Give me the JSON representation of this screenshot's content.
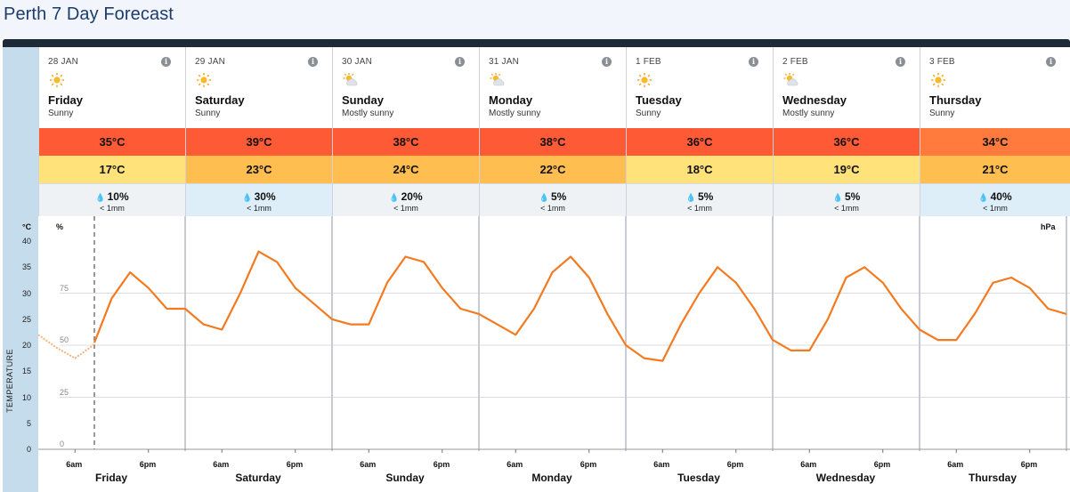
{
  "page_title": "Perth 7 Day Forecast",
  "days": [
    {
      "date": "28 JAN",
      "name": "Friday",
      "desc": "Sunny",
      "icon": "sun-icon",
      "max": "35°C",
      "min": "17°C",
      "max_color": "#ff5a36",
      "min_color": "#ffe27a",
      "rain_chance": "10%",
      "rain_amount": "< 1mm",
      "rain_bg": "#eff2f5"
    },
    {
      "date": "29 JAN",
      "name": "Saturday",
      "desc": "Sunny",
      "icon": "sun-icon",
      "max": "39°C",
      "min": "23°C",
      "max_color": "#ff5a36",
      "min_color": "#ffbe4f",
      "rain_chance": "30%",
      "rain_amount": "< 1mm",
      "rain_bg": "#ddeef8"
    },
    {
      "date": "30 JAN",
      "name": "Sunday",
      "desc": "Mostly sunny",
      "icon": "mostly-sunny-icon",
      "max": "38°C",
      "min": "24°C",
      "max_color": "#ff5a36",
      "min_color": "#ffbe4f",
      "rain_chance": "20%",
      "rain_amount": "< 1mm",
      "rain_bg": "#eff2f5"
    },
    {
      "date": "31 JAN",
      "name": "Monday",
      "desc": "Mostly sunny",
      "icon": "mostly-sunny-icon",
      "max": "38°C",
      "min": "22°C",
      "max_color": "#ff5a36",
      "min_color": "#ffbe4f",
      "rain_chance": "5%",
      "rain_amount": "< 1mm",
      "rain_bg": "#eff2f5"
    },
    {
      "date": "1 FEB",
      "name": "Tuesday",
      "desc": "Sunny",
      "icon": "sun-icon",
      "max": "36°C",
      "min": "18°C",
      "max_color": "#ff5a36",
      "min_color": "#ffe27a",
      "rain_chance": "5%",
      "rain_amount": "< 1mm",
      "rain_bg": "#eff2f5"
    },
    {
      "date": "2 FEB",
      "name": "Wednesday",
      "desc": "Mostly sunny",
      "icon": "mostly-sunny-icon",
      "max": "36°C",
      "min": "19°C",
      "max_color": "#ff5a36",
      "min_color": "#ffe27a",
      "rain_chance": "5%",
      "rain_amount": "< 1mm",
      "rain_bg": "#eff2f5"
    },
    {
      "date": "3 FEB",
      "name": "Thursday",
      "desc": "Sunny",
      "icon": "sun-icon",
      "max": "34°C",
      "min": "21°C",
      "max_color": "#ff7a3c",
      "min_color": "#ffbe4f",
      "rain_chance": "40%",
      "rain_amount": "< 1mm",
      "rain_bg": "#ddeef8"
    }
  ],
  "graph": {
    "unit_left": "°C",
    "unit_pct": "%",
    "unit_right": "hPa",
    "y_label": "TEMPERATURE",
    "temp_ticks": [
      "40",
      "35",
      "30",
      "25",
      "20",
      "15",
      "10",
      "5",
      "0"
    ],
    "pct_ticks": [
      "75",
      "50",
      "25",
      "0"
    ],
    "time_labels": [
      "6am",
      "6pm"
    ],
    "line_color": "#f47a20"
  },
  "chart_data": {
    "type": "line",
    "ylabel": "TEMPERATURE",
    "ylim": [
      0,
      40
    ],
    "x_unit": "hour",
    "series": [
      {
        "values": [
          [
            0,
            22
          ],
          [
            3,
            19.5
          ],
          [
            6,
            17.5
          ],
          [
            9,
            20
          ],
          [
            12,
            29
          ],
          [
            15,
            34
          ],
          [
            18,
            31
          ],
          [
            21,
            27
          ],
          [
            24,
            27
          ],
          [
            27,
            24
          ],
          [
            30,
            23
          ],
          [
            33,
            30
          ],
          [
            36,
            38
          ],
          [
            39,
            36
          ],
          [
            42,
            31
          ],
          [
            45,
            28
          ],
          [
            48,
            25
          ],
          [
            51,
            24
          ],
          [
            54,
            24
          ],
          [
            57,
            32
          ],
          [
            60,
            37
          ],
          [
            63,
            36
          ],
          [
            66,
            31
          ],
          [
            69,
            27
          ],
          [
            72,
            26
          ],
          [
            75,
            24
          ],
          [
            78,
            22
          ],
          [
            81,
            27
          ],
          [
            84,
            34
          ],
          [
            87,
            37
          ],
          [
            90,
            33
          ],
          [
            93,
            26
          ],
          [
            96,
            20
          ],
          [
            99,
            17.5
          ],
          [
            102,
            17
          ],
          [
            105,
            24
          ],
          [
            108,
            30
          ],
          [
            111,
            35
          ],
          [
            114,
            32
          ],
          [
            117,
            27
          ],
          [
            120,
            21
          ],
          [
            123,
            19
          ],
          [
            126,
            19
          ],
          [
            129,
            25
          ],
          [
            132,
            33
          ],
          [
            135,
            35
          ],
          [
            138,
            32
          ],
          [
            141,
            27
          ],
          [
            144,
            23
          ],
          [
            147,
            21
          ],
          [
            150,
            21
          ],
          [
            153,
            26
          ],
          [
            156,
            32
          ],
          [
            159,
            33
          ],
          [
            162,
            31
          ],
          [
            165,
            27
          ],
          [
            168,
            26
          ]
        ]
      }
    ]
  }
}
